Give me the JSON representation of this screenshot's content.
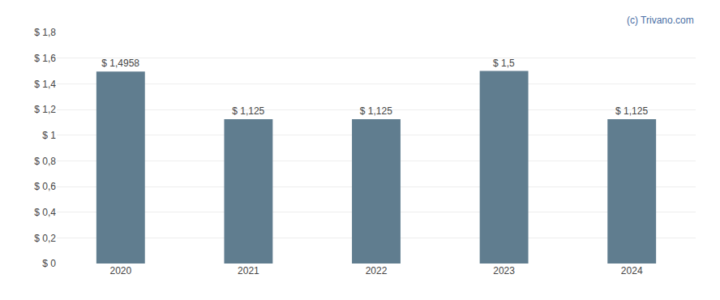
{
  "chart_data": {
    "type": "bar",
    "categories": [
      "2020",
      "2021",
      "2022",
      "2023",
      "2024"
    ],
    "values": [
      1.4958,
      1.125,
      1.125,
      1.5,
      1.125
    ],
    "value_labels": [
      "$ 1,4958",
      "$ 1,125",
      "$ 1,125",
      "$ 1,5",
      "$ 1,125"
    ],
    "data_labels": true,
    "color": "#607d8f",
    "ylim": [
      0,
      1.8
    ],
    "yticks": [
      {
        "value": 0,
        "label": "$ 0"
      },
      {
        "value": 0.2,
        "label": "$ 0,2"
      },
      {
        "value": 0.4,
        "label": "$ 0,4"
      },
      {
        "value": 0.6,
        "label": "$ 0,6"
      },
      {
        "value": 0.8,
        "label": "$ 0,8"
      },
      {
        "value": 1.0,
        "label": "$ 1"
      },
      {
        "value": 1.2,
        "label": "$ 1,2"
      },
      {
        "value": 1.4,
        "label": "$ 1,4"
      },
      {
        "value": 1.6,
        "label": "$ 1,6"
      },
      {
        "value": 1.8,
        "label": "$ 1,8"
      }
    ],
    "grid": true,
    "annotations": [
      {
        "text": "(c) Trivano.com",
        "color": "#4a6fa5"
      }
    ]
  }
}
